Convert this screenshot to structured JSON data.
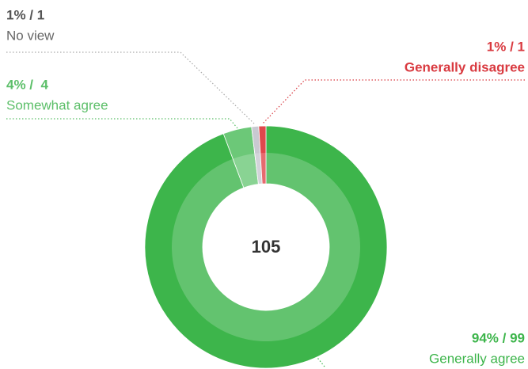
{
  "chart_data": {
    "type": "donut",
    "center_label": 105,
    "categories": [
      "Generally agree",
      "Somewhat agree",
      "No view",
      "Generally disagree"
    ],
    "values": [
      99,
      4,
      1,
      1
    ],
    "value_labels": [
      "94% / 99",
      "4% /  4",
      "1% / 1",
      "1% / 1"
    ],
    "colors": [
      "#3db54b",
      "#6cc878",
      "#c9c9d1",
      "#e0474c"
    ],
    "label_colors": [
      "#3db54b",
      "#5cbf69",
      "#555555",
      "#d93a40"
    ]
  }
}
